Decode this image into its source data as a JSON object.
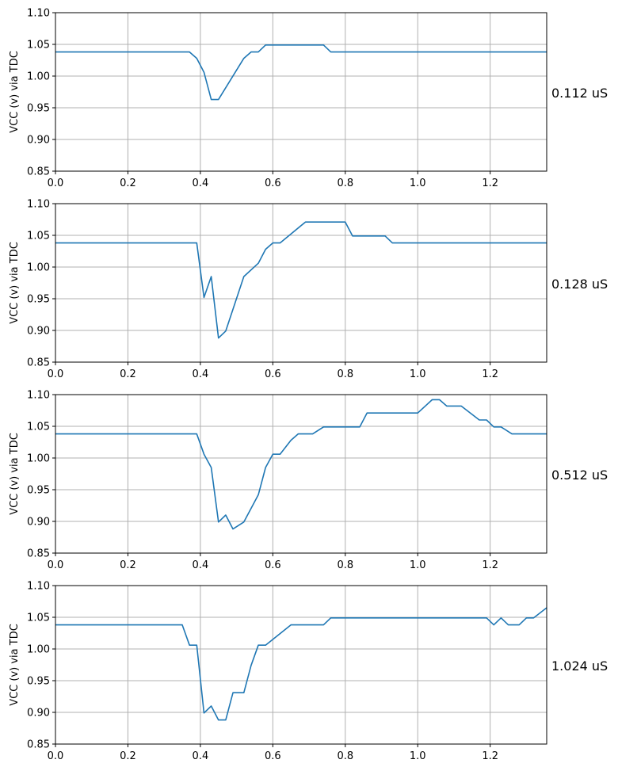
{
  "chart_data": [
    {
      "type": "line",
      "ylabel": "VCC (v) via TDC",
      "side_label": "0.112 uS",
      "xlim": [
        0,
        1.356
      ],
      "ylim": [
        0.85,
        1.1
      ],
      "xticks": [
        "0.0",
        "0.2",
        "0.4",
        "0.6",
        "0.8",
        "1.0",
        "1.2"
      ],
      "yticks": [
        "0.85",
        "0.90",
        "0.95",
        "1.00",
        "1.05",
        "1.10"
      ],
      "grid": true,
      "series_color": "#1f77b4",
      "x": [
        0.0,
        0.37,
        0.39,
        0.41,
        0.43,
        0.45,
        0.52,
        0.54,
        0.56,
        0.58,
        0.74,
        0.76,
        1.356
      ],
      "y": [
        1.038,
        1.038,
        1.028,
        1.006,
        0.963,
        0.963,
        1.028,
        1.038,
        1.038,
        1.049,
        1.049,
        1.038,
        1.038
      ]
    },
    {
      "type": "line",
      "ylabel": "VCC (v) via TDC",
      "side_label": "0.128 uS",
      "xlim": [
        0,
        1.356
      ],
      "ylim": [
        0.85,
        1.1
      ],
      "xticks": [
        "0.0",
        "0.2",
        "0.4",
        "0.6",
        "0.8",
        "1.0",
        "1.2"
      ],
      "yticks": [
        "0.85",
        "0.90",
        "0.95",
        "1.00",
        "1.05",
        "1.10"
      ],
      "grid": true,
      "series_color": "#1f77b4",
      "x": [
        0.0,
        0.39,
        0.41,
        0.43,
        0.45,
        0.47,
        0.52,
        0.56,
        0.58,
        0.6,
        0.62,
        0.69,
        0.8,
        0.82,
        0.91,
        0.93,
        1.356
      ],
      "y": [
        1.038,
        1.038,
        0.952,
        0.985,
        0.888,
        0.899,
        0.985,
        1.006,
        1.028,
        1.038,
        1.038,
        1.071,
        1.071,
        1.049,
        1.049,
        1.038,
        1.038
      ]
    },
    {
      "type": "line",
      "ylabel": "VCC (v) via TDC",
      "side_label": "0.512 uS",
      "xlim": [
        0,
        1.356
      ],
      "ylim": [
        0.85,
        1.1
      ],
      "xticks": [
        "0.0",
        "0.2",
        "0.4",
        "0.6",
        "0.8",
        "1.0",
        "1.2"
      ],
      "yticks": [
        "0.85",
        "0.90",
        "0.95",
        "1.00",
        "1.05",
        "1.10"
      ],
      "grid": true,
      "series_color": "#1f77b4",
      "x": [
        0.0,
        0.39,
        0.41,
        0.43,
        0.45,
        0.47,
        0.49,
        0.52,
        0.56,
        0.58,
        0.6,
        0.62,
        0.65,
        0.67,
        0.71,
        0.74,
        0.84,
        0.86,
        1.0,
        1.04,
        1.06,
        1.08,
        1.12,
        1.17,
        1.19,
        1.21,
        1.23,
        1.26,
        1.356
      ],
      "y": [
        1.038,
        1.038,
        1.006,
        0.985,
        0.899,
        0.91,
        0.888,
        0.899,
        0.942,
        0.985,
        1.006,
        1.006,
        1.028,
        1.038,
        1.038,
        1.049,
        1.049,
        1.071,
        1.071,
        1.092,
        1.092,
        1.082,
        1.082,
        1.06,
        1.06,
        1.049,
        1.049,
        1.038,
        1.038
      ]
    },
    {
      "type": "line",
      "ylabel": "VCC (v) via TDC",
      "side_label": "1.024 uS",
      "xlim": [
        0,
        1.356
      ],
      "ylim": [
        0.85,
        1.1
      ],
      "xticks": [
        "0.0",
        "0.2",
        "0.4",
        "0.6",
        "0.8",
        "1.0",
        "1.2"
      ],
      "yticks": [
        "0.85",
        "0.90",
        "0.95",
        "1.00",
        "1.05",
        "1.10"
      ],
      "grid": true,
      "series_color": "#1f77b4",
      "x": [
        0.0,
        0.35,
        0.37,
        0.39,
        0.41,
        0.43,
        0.45,
        0.47,
        0.49,
        0.52,
        0.54,
        0.56,
        0.58,
        0.65,
        0.74,
        0.76,
        1.19,
        1.21,
        1.23,
        1.25,
        1.28,
        1.3,
        1.32,
        1.356
      ],
      "y": [
        1.038,
        1.038,
        1.006,
        1.006,
        0.899,
        0.91,
        0.888,
        0.888,
        0.931,
        0.931,
        0.974,
        1.006,
        1.006,
        1.038,
        1.038,
        1.049,
        1.049,
        1.038,
        1.049,
        1.038,
        1.038,
        1.049,
        1.049,
        1.065
      ]
    }
  ]
}
